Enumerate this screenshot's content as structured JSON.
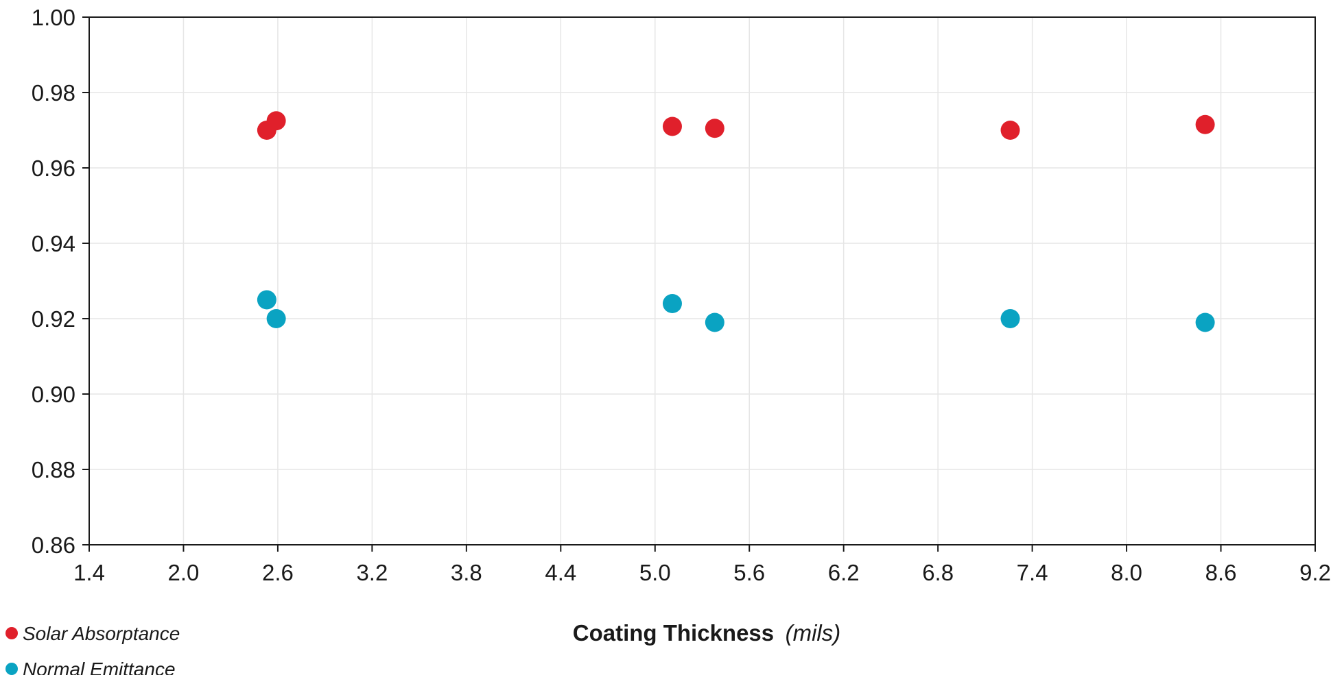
{
  "chart_data": {
    "type": "scatter",
    "xlabel": "Coating Thickness",
    "xlabel_unit": "(mils)",
    "ylabel": "",
    "xlim": [
      1.4,
      9.2
    ],
    "ylim": [
      0.86,
      1.0
    ],
    "xticks": [
      "1.4",
      "2.0",
      "2.6",
      "3.2",
      "3.8",
      "4.4",
      "5.0",
      "5.6",
      "6.2",
      "6.8",
      "7.4",
      "8.0",
      "8.6",
      "9.2"
    ],
    "yticks": [
      "0.86",
      "0.88",
      "0.90",
      "0.92",
      "0.94",
      "0.96",
      "0.98",
      "1.00"
    ],
    "grid": true,
    "legend_position": "bottom-left",
    "series": [
      {
        "name": "Solar Absorptance",
        "color": "#e0202b",
        "points": [
          {
            "x": 2.53,
            "y": 0.97
          },
          {
            "x": 2.59,
            "y": 0.9725
          },
          {
            "x": 5.11,
            "y": 0.971
          },
          {
            "x": 5.38,
            "y": 0.9705
          },
          {
            "x": 7.26,
            "y": 0.97
          },
          {
            "x": 8.5,
            "y": 0.9715
          }
        ]
      },
      {
        "name": "Normal Emittance",
        "color": "#0aa3c2",
        "points": [
          {
            "x": 2.53,
            "y": 0.925
          },
          {
            "x": 2.59,
            "y": 0.92
          },
          {
            "x": 5.11,
            "y": 0.924
          },
          {
            "x": 5.38,
            "y": 0.919
          },
          {
            "x": 7.26,
            "y": 0.92
          },
          {
            "x": 8.5,
            "y": 0.919
          }
        ]
      }
    ]
  }
}
